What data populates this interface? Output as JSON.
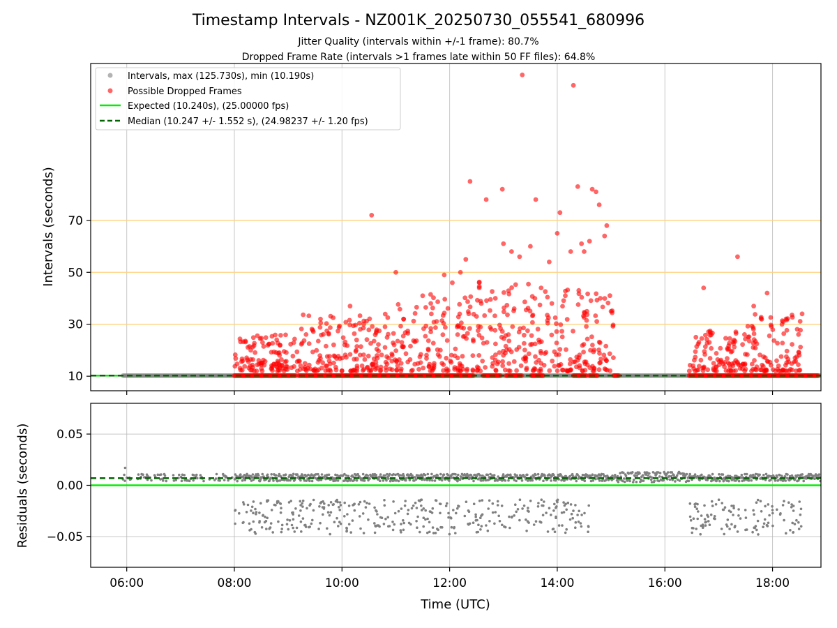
{
  "figure": {
    "title": "Timestamp Intervals - NZ001K_20250730_055541_680996",
    "subtitle_1": "Jitter Quality (intervals within +/-1 frame): 80.7%",
    "subtitle_2": "Dropped Frame Rate (intervals >1 frames late within 50 FF files): 64.8%"
  },
  "chart_data": [
    {
      "type": "scatter",
      "panel": "intervals",
      "ylabel": "Intervals (seconds)",
      "xlabel": "",
      "x_unit": "hours UTC",
      "xlim": [
        5.33,
        18.9
      ],
      "ylim": [
        4.4,
        130.4
      ],
      "x_ticks": [
        6,
        8,
        10,
        12,
        14,
        16,
        18
      ],
      "x_tick_labels": [
        "06:00",
        "08:00",
        "10:00",
        "12:00",
        "14:00",
        "16:00",
        "18:00"
      ],
      "y_ticks": [
        10,
        30,
        50,
        70
      ],
      "y_tick_labels": [
        "10",
        "30",
        "50",
        "70"
      ],
      "grid": true,
      "reference_lines": [
        {
          "name": "threshold",
          "value": 30,
          "color": "#ffd27f"
        },
        {
          "name": "threshold",
          "value": 50,
          "color": "#ffd27f"
        },
        {
          "name": "threshold",
          "value": 70,
          "color": "#ffd27f"
        }
      ],
      "legend_placement": "upper-left",
      "series": [
        {
          "name": "Intervals, max (125.730s), min (10.190s)",
          "kind": "points",
          "color": "#808080",
          "segments": [
            [
              5.93,
              18.9
            ]
          ],
          "value": 10.24
        },
        {
          "name": "Possible Dropped Frames",
          "kind": "points",
          "color": "#ff0000",
          "segments_at_baseline": [
            [
              8.0,
              9.15
            ],
            [
              9.2,
              12.45
            ],
            [
              12.62,
              12.95
            ],
            [
              13.05,
              13.35
            ],
            [
              13.52,
              13.75
            ],
            [
              14.3,
              14.55
            ],
            [
              14.6,
              14.75
            ],
            [
              15.05,
              15.15
            ],
            [
              16.45,
              18.85
            ]
          ],
          "outliers": [
            [
              10.55,
              72
            ],
            [
              12.38,
              85
            ],
            [
              12.68,
              78
            ],
            [
              12.98,
              82
            ],
            [
              13.35,
              126
            ],
            [
              13.6,
              78
            ],
            [
              14.05,
              73
            ],
            [
              14.3,
              122
            ],
            [
              14.38,
              83
            ],
            [
              14.5,
              58
            ],
            [
              14.65,
              82
            ],
            [
              14.72,
              81
            ],
            [
              14.78,
              76
            ],
            [
              14.6,
              62
            ],
            [
              14.92,
              68
            ],
            [
              14.88,
              64
            ],
            [
              11.0,
              50
            ],
            [
              11.9,
              49
            ],
            [
              12.3,
              55
            ],
            [
              12.55,
              44
            ],
            [
              13.0,
              61
            ],
            [
              13.15,
              58
            ],
            [
              13.3,
              56
            ],
            [
              13.5,
              60
            ],
            [
              13.85,
              54
            ],
            [
              14.0,
              65
            ],
            [
              14.25,
              58
            ],
            [
              14.45,
              61
            ],
            [
              17.35,
              56
            ],
            [
              16.72,
              44
            ],
            [
              17.65,
              37
            ],
            [
              17.9,
              42
            ],
            [
              18.2,
              31
            ],
            [
              18.55,
              34
            ],
            [
              9.6,
              32
            ],
            [
              10.15,
              37
            ],
            [
              10.8,
              29
            ],
            [
              11.5,
              41
            ],
            [
              11.65,
              38
            ],
            [
              12.05,
              46
            ],
            [
              12.2,
              50
            ],
            [
              12.5,
              33
            ],
            [
              12.85,
              40
            ],
            [
              13.2,
              36
            ],
            [
              13.7,
              44
            ],
            [
              13.9,
              38
            ],
            [
              14.15,
              41
            ],
            [
              14.4,
              43
            ],
            [
              14.55,
              35
            ],
            [
              14.8,
              40
            ],
            [
              15.0,
              35
            ]
          ],
          "dense_bands": [
            {
              "x_range": [
                8.0,
                9.2
              ],
              "y_range": [
                12,
                26
              ]
            },
            {
              "x_range": [
                9.2,
                11.0
              ],
              "y_range": [
                12,
                34
              ]
            },
            {
              "x_range": [
                11.0,
                12.3
              ],
              "y_range": [
                12,
                42
              ]
            },
            {
              "x_range": [
                12.3,
                13.5
              ],
              "y_range": [
                12,
                48
              ]
            },
            {
              "x_range": [
                13.5,
                14.6
              ],
              "y_range": [
                12,
                45
              ]
            },
            {
              "x_range": [
                14.6,
                15.05
              ],
              "y_range": [
                12,
                42
              ]
            },
            {
              "x_range": [
                16.45,
                17.5
              ],
              "y_range": [
                12,
                30
              ]
            },
            {
              "x_range": [
                17.5,
                18.55
              ],
              "y_range": [
                12,
                34
              ]
            }
          ]
        },
        {
          "name": "Expected (10.240s), (25.00000 fps)",
          "kind": "hline",
          "value": 10.24,
          "color": "#00ee00",
          "style": "solid"
        },
        {
          "name": "Median (10.247 +/- 1.552 s), (24.98237 +/- 1.20 fps)",
          "kind": "hline",
          "value": 10.247,
          "color": "#006400",
          "style": "dashed"
        }
      ]
    },
    {
      "type": "scatter",
      "panel": "residuals",
      "ylabel": "Residuals (seconds)",
      "xlabel": "Time (UTC)",
      "x_unit": "hours UTC",
      "xlim": [
        5.33,
        18.9
      ],
      "ylim": [
        -0.08,
        0.08
      ],
      "x_ticks": [
        6,
        8,
        10,
        12,
        14,
        16,
        18
      ],
      "x_tick_labels": [
        "06:00",
        "08:00",
        "10:00",
        "12:00",
        "14:00",
        "16:00",
        "18:00"
      ],
      "y_ticks": [
        0.05,
        0.0,
        -0.05
      ],
      "y_tick_labels": [
        "0.05",
        "0.00",
        "−0.05"
      ],
      "grid": true,
      "series": [
        {
          "name": "residuals",
          "kind": "points",
          "color": "#808080",
          "segments": [
            [
              5.93,
              18.9
            ]
          ],
          "main_band": [
            0.004,
            0.011
          ],
          "lower_band": [
            -0.048,
            -0.014
          ],
          "lower_band_ranges": [
            [
              8.0,
              14.6
            ],
            [
              16.45,
              18.55
            ]
          ]
        },
        {
          "name": "expected",
          "kind": "hline",
          "value": 0.0,
          "color": "#00ee00",
          "style": "solid"
        },
        {
          "name": "median",
          "kind": "hline",
          "value": 0.007,
          "color": "#006400",
          "style": "dashed"
        }
      ]
    }
  ]
}
